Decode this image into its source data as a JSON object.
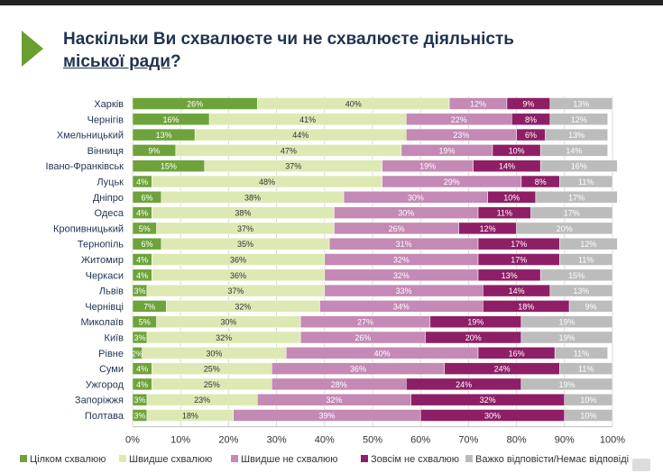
{
  "title": {
    "line1": "Наскільки Ви схвалюєте чи не схвалюєте діяльність",
    "line2_underlined": "міської ради",
    "line2_rest": "?"
  },
  "colors": {
    "accent": "#6a9e2e",
    "title": "#1f3350",
    "series": [
      "#6ea33b",
      "#dde9b3",
      "#c489b4",
      "#8e1f66",
      "#bcbcbc"
    ]
  },
  "chart_data": {
    "type": "bar",
    "orientation": "horizontal",
    "stacked": true,
    "xlim": [
      0,
      100
    ],
    "x_ticks": [
      "0%",
      "10%",
      "20%",
      "30%",
      "40%",
      "50%",
      "60%",
      "70%",
      "80%",
      "90%",
      "100%"
    ],
    "grid": true,
    "legend_position": "bottom",
    "categories": [
      "Харків",
      "Чернігів",
      "Хмельницький",
      "Вінниця",
      "Івано-Франківськ",
      "Луцьк",
      "Дніпро",
      "Одеса",
      "Кропивницький",
      "Тернопіль",
      "Житомир",
      "Черкаси",
      "Львів",
      "Чернівці",
      "Миколаїв",
      "Київ",
      "Рівне",
      "Суми",
      "Ужгород",
      "Запоріжжя",
      "Полтава"
    ],
    "series": [
      {
        "name": "Цілком схвалюю",
        "values": [
          26,
          16,
          13,
          9,
          15,
          4,
          6,
          4,
          5,
          6,
          4,
          4,
          3,
          7,
          5,
          3,
          2,
          4,
          4,
          3,
          3
        ]
      },
      {
        "name": "Швидше схвалюю",
        "values": [
          40,
          41,
          44,
          47,
          37,
          48,
          38,
          38,
          37,
          35,
          36,
          36,
          37,
          32,
          30,
          32,
          30,
          25,
          25,
          23,
          18
        ]
      },
      {
        "name": "Швидше не схвалюю",
        "values": [
          12,
          22,
          23,
          19,
          19,
          29,
          30,
          30,
          26,
          31,
          32,
          32,
          33,
          34,
          27,
          26,
          40,
          36,
          28,
          32,
          39
        ]
      },
      {
        "name": "Зовсім не схвалюю",
        "values": [
          9,
          8,
          6,
          10,
          14,
          8,
          10,
          11,
          12,
          17,
          17,
          13,
          14,
          18,
          19,
          20,
          16,
          24,
          24,
          32,
          30
        ]
      },
      {
        "name": "Важко відповісти/Немає відповіді",
        "values": [
          13,
          12,
          13,
          14,
          16,
          11,
          17,
          17,
          20,
          12,
          11,
          15,
          13,
          9,
          19,
          19,
          11,
          11,
          19,
          10,
          10
        ]
      }
    ]
  }
}
